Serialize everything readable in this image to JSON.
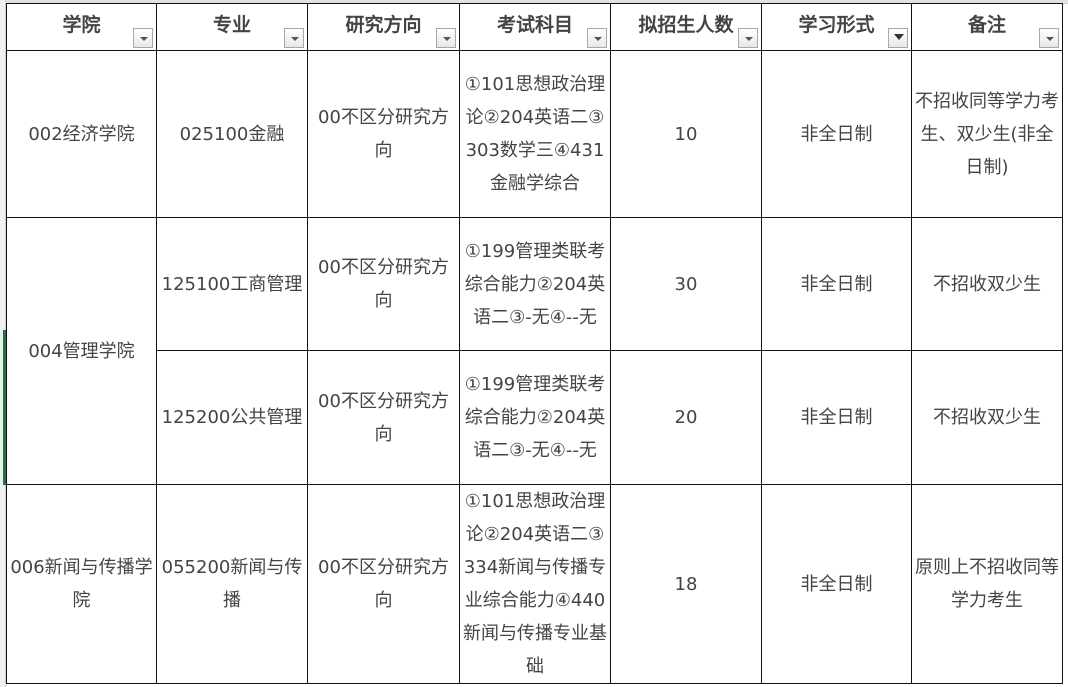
{
  "headers": [
    "学院",
    "专业",
    "研究方向",
    "考试科目",
    "拟招生人数",
    "学习形式",
    "备注"
  ],
  "filter_active_column": "学习形式",
  "rows": [
    {
      "college": "002经济学院",
      "major": "025100金融",
      "direction": "00不区分研究方向",
      "subjects": "①101思想政治理论②204英语二③303数学三④431金融学综合",
      "quota": "10",
      "mode": "非全日制",
      "note": "不招收同等学力考生、双少生(非全日制)"
    },
    {
      "college": "004管理学院",
      "major": "125100工商管理",
      "direction": "00不区分研究方向",
      "subjects": "①199管理类联考综合能力②204英语二③-无④--无",
      "quota": "30",
      "mode": "非全日制",
      "note": "不招收双少生"
    },
    {
      "major": "125200公共管理",
      "direction": "00不区分研究方向",
      "subjects": "①199管理类联考综合能力②204英语二③-无④--无",
      "quota": "20",
      "mode": "非全日制",
      "note": "不招收双少生"
    },
    {
      "college": "006新闻与传播学院",
      "major": "055200新闻与传播",
      "direction": "00不区分研究方向",
      "subjects": "①101思想政治理论②204英语二③334新闻与传播专业综合能力④440新闻与传播专业基础",
      "quota": "18",
      "mode": "非全日制",
      "note": "原则上不招收同等学力考生"
    }
  ]
}
